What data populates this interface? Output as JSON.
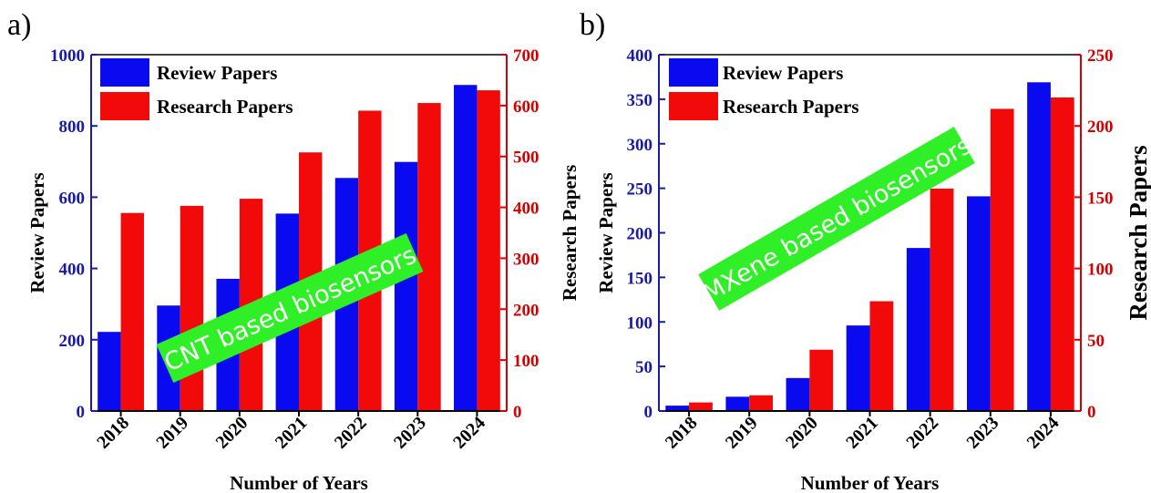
{
  "colors": {
    "review": "#0a0af0",
    "research": "#f20a0a",
    "left_axis": "#1a1aa8",
    "right_axis": "#d60000",
    "banner": "#2ff026"
  },
  "chart_data": [
    {
      "panel_letter": "a)",
      "type": "bar",
      "categories": [
        "2018",
        "2019",
        "2020",
        "2021",
        "2022",
        "2023",
        "2024"
      ],
      "series": [
        {
          "name": "Review Papers",
          "axis": "left",
          "values": [
            222,
            296,
            371,
            554,
            654,
            699,
            915
          ]
        },
        {
          "name": "Research Papers",
          "axis": "right",
          "values": [
            389,
            403,
            417,
            508,
            590,
            605,
            630
          ]
        }
      ],
      "xlabel": "Number of Years",
      "ylabel_left": "Review Papers",
      "ylabel_right": "Research Papers",
      "ylim_left": [
        0,
        1000
      ],
      "ylim_right": [
        0,
        700
      ],
      "yticks_left": [
        "0",
        "200",
        "400",
        "600",
        "800",
        "1000"
      ],
      "yticks_right": [
        "0",
        "100",
        "200",
        "300",
        "400",
        "500",
        "600",
        "700"
      ],
      "annotation": "CNT based biosensors",
      "legend": [
        "Review Papers",
        "Research Papers"
      ],
      "legend_placement": "top-left",
      "grid": false
    },
    {
      "panel_letter": "b)",
      "type": "bar",
      "categories": [
        "2018",
        "2019",
        "2020",
        "2021",
        "2022",
        "2023",
        "2024"
      ],
      "series": [
        {
          "name": "Review  Papers",
          "axis": "left",
          "values": [
            6,
            16,
            37,
            96,
            183,
            241,
            369
          ]
        },
        {
          "name": "Research Papers",
          "axis": "right",
          "values": [
            6,
            11,
            43,
            77,
            156,
            212,
            220
          ]
        }
      ],
      "xlabel": "Number  of Years",
      "ylabel_left": "Review  Papers",
      "ylabel_right": "Research Papers",
      "ylim_left": [
        0,
        400
      ],
      "ylim_right": [
        0,
        250
      ],
      "yticks_left": [
        "0",
        "50",
        "100",
        "150",
        "200",
        "250",
        "300",
        "350",
        "400"
      ],
      "yticks_right": [
        "0",
        "50",
        "100",
        "150",
        "200",
        "250"
      ],
      "annotation": "MXene based biosensors",
      "legend": [
        "Review  Papers",
        "Research Papers"
      ],
      "legend_placement": "top-left",
      "grid": false
    }
  ]
}
